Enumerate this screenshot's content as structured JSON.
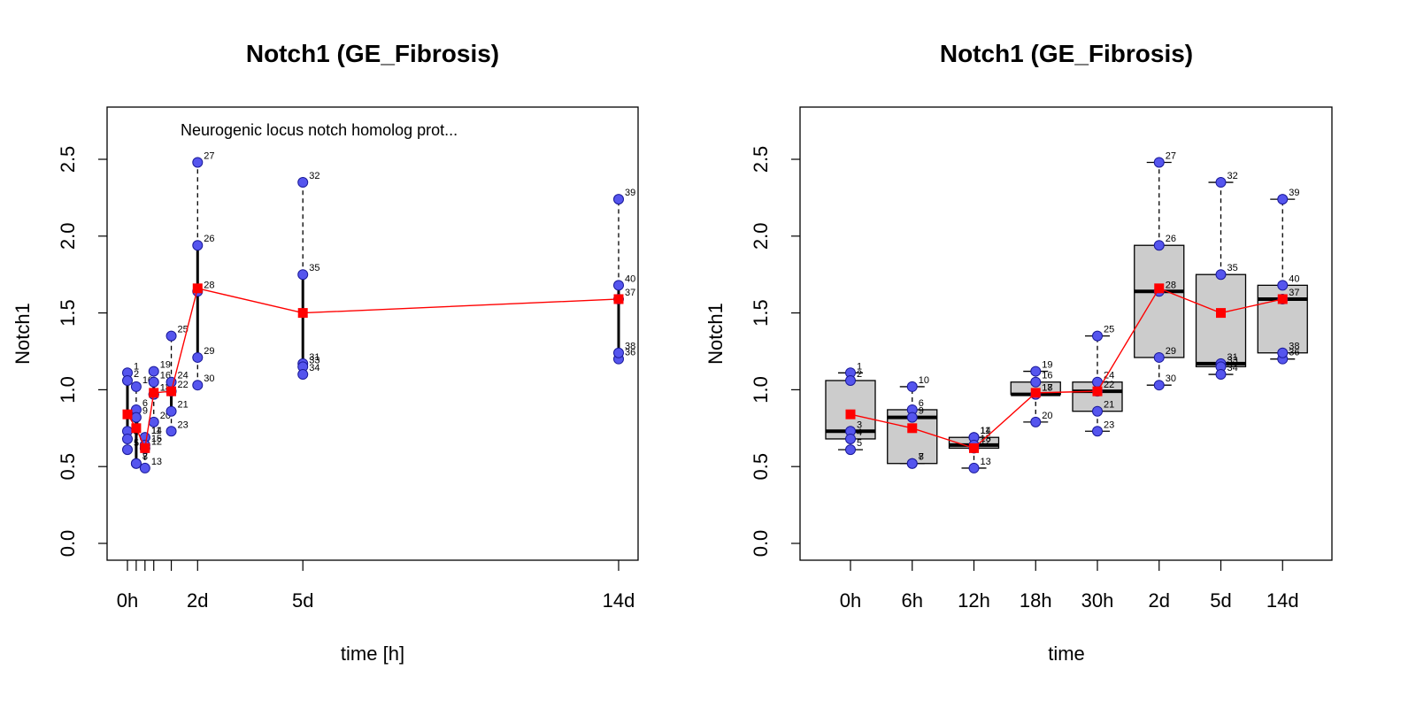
{
  "chart_data": [
    {
      "type": "scatter",
      "title": "Notch1 (GE_Fibrosis)",
      "subtitle": "Neurogenic locus notch homolog prot...",
      "xlabel": "time [h]",
      "ylabel": "Notch1",
      "ylim": [
        -0.1,
        2.8
      ],
      "yticks": [
        "0.0",
        "0.5",
        "1.0",
        "1.5",
        "2.0",
        "2.5"
      ],
      "xlim": [
        -12,
        348
      ],
      "xticks": [
        {
          "x": 0,
          "label": "0h"
        },
        {
          "x": 6,
          "label": ""
        },
        {
          "x": 12,
          "label": ""
        },
        {
          "x": 18,
          "label": ""
        },
        {
          "x": 30,
          "label": ""
        },
        {
          "x": 48,
          "label": "2d"
        },
        {
          "x": 120,
          "label": "5d"
        },
        {
          "x": 336,
          "label": "14d"
        }
      ],
      "groups": [
        {
          "x": 0,
          "min": 0.61,
          "q1": 0.68,
          "median": 0.73,
          "q3": 1.06,
          "max": 1.11,
          "mean": 0.84
        },
        {
          "x": 6,
          "min": 0.52,
          "q1": 0.52,
          "median": 0.82,
          "q3": 0.87,
          "max": 1.02,
          "mean": 0.75
        },
        {
          "x": 12,
          "min": 0.49,
          "q1": 0.62,
          "median": 0.64,
          "q3": 0.69,
          "max": 0.69,
          "mean": 0.62
        },
        {
          "x": 18,
          "min": 0.79,
          "q1": 0.97,
          "median": 0.97,
          "q3": 1.05,
          "max": 1.12,
          "mean": 0.98
        },
        {
          "x": 30,
          "min": 0.73,
          "q1": 0.86,
          "median": 0.99,
          "q3": 1.05,
          "max": 1.35,
          "mean": 0.99
        },
        {
          "x": 48,
          "min": 1.03,
          "q1": 1.21,
          "median": 1.64,
          "q3": 1.94,
          "max": 2.48,
          "mean": 1.66
        },
        {
          "x": 120,
          "min": 1.1,
          "q1": 1.15,
          "median": 1.17,
          "q3": 1.75,
          "max": 2.35,
          "mean": 1.5
        },
        {
          "x": 336,
          "min": 1.2,
          "q1": 1.24,
          "median": 1.59,
          "q3": 1.68,
          "max": 2.24,
          "mean": 1.59
        }
      ],
      "points": [
        {
          "id": "1",
          "x": 0,
          "y": 1.11
        },
        {
          "id": "2",
          "x": 0,
          "y": 1.06
        },
        {
          "id": "3",
          "x": 0,
          "y": 0.73
        },
        {
          "id": "4",
          "x": 0,
          "y": 0.68
        },
        {
          "id": "5",
          "x": 0,
          "y": 0.61
        },
        {
          "id": "6",
          "x": 6,
          "y": 0.87
        },
        {
          "id": "7",
          "x": 6,
          "y": 0.52
        },
        {
          "id": "8",
          "x": 6,
          "y": 0.52
        },
        {
          "id": "9",
          "x": 6,
          "y": 0.82
        },
        {
          "id": "10",
          "x": 6,
          "y": 1.02
        },
        {
          "id": "11",
          "x": 12,
          "y": 0.69
        },
        {
          "id": "12",
          "x": 12,
          "y": 0.62
        },
        {
          "id": "13",
          "x": 12,
          "y": 0.49
        },
        {
          "id": "14",
          "x": 12,
          "y": 0.69
        },
        {
          "id": "15",
          "x": 12,
          "y": 0.64
        },
        {
          "id": "16",
          "x": 18,
          "y": 1.05
        },
        {
          "id": "17",
          "x": 18,
          "y": 0.97
        },
        {
          "id": "18",
          "x": 18,
          "y": 0.97
        },
        {
          "id": "19",
          "x": 18,
          "y": 1.12
        },
        {
          "id": "20",
          "x": 18,
          "y": 0.79
        },
        {
          "id": "21",
          "x": 30,
          "y": 0.86
        },
        {
          "id": "22",
          "x": 30,
          "y": 0.99
        },
        {
          "id": "23",
          "x": 30,
          "y": 0.73
        },
        {
          "id": "24",
          "x": 30,
          "y": 1.05
        },
        {
          "id": "25",
          "x": 30,
          "y": 1.35
        },
        {
          "id": "26",
          "x": 48,
          "y": 1.94
        },
        {
          "id": "27",
          "x": 48,
          "y": 2.48
        },
        {
          "id": "28",
          "x": 48,
          "y": 1.64
        },
        {
          "id": "29",
          "x": 48,
          "y": 1.21
        },
        {
          "id": "30",
          "x": 48,
          "y": 1.03
        },
        {
          "id": "31",
          "x": 120,
          "y": 1.17
        },
        {
          "id": "32",
          "x": 120,
          "y": 2.35
        },
        {
          "id": "33",
          "x": 120,
          "y": 1.15
        },
        {
          "id": "34",
          "x": 120,
          "y": 1.1
        },
        {
          "id": "35",
          "x": 120,
          "y": 1.75
        },
        {
          "id": "36",
          "x": 336,
          "y": 1.2
        },
        {
          "id": "37",
          "x": 336,
          "y": 1.59
        },
        {
          "id": "38",
          "x": 336,
          "y": 1.24
        },
        {
          "id": "39",
          "x": 336,
          "y": 2.24
        },
        {
          "id": "40",
          "x": 336,
          "y": 1.68
        }
      ],
      "colors": {
        "points": "#5555ee",
        "mean": "#ff0000",
        "box": "#cccccc"
      }
    },
    {
      "type": "box",
      "title": "Notch1 (GE_Fibrosis)",
      "xlabel": "time",
      "ylabel": "Notch1",
      "ylim": [
        -0.1,
        2.8
      ],
      "yticks": [
        "0.0",
        "0.5",
        "1.0",
        "1.5",
        "2.0",
        "2.5"
      ],
      "categories": [
        "0h",
        "6h",
        "12h",
        "18h",
        "30h",
        "2d",
        "5d",
        "14d"
      ],
      "same_data_as_left": true
    }
  ]
}
